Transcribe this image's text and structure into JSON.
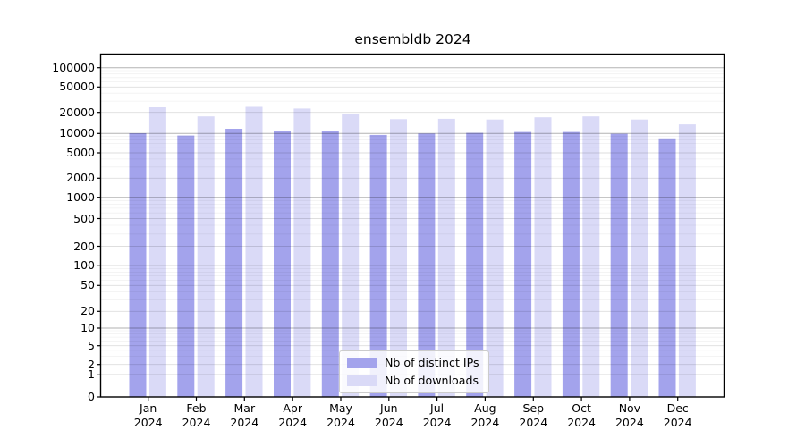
{
  "title": "ensembldb 2024",
  "chart_data": {
    "type": "bar",
    "title": "ensembldb 2024",
    "months": [
      "Jan",
      "Feb",
      "Mar",
      "Apr",
      "May",
      "Jun",
      "Jul",
      "Aug",
      "Sep",
      "Oct",
      "Nov",
      "Dec"
    ],
    "year_label": "2024",
    "categories": [
      "Jan 2024",
      "Feb 2024",
      "Mar 2024",
      "Apr 2024",
      "May 2024",
      "Jun 2024",
      "Jul 2024",
      "Aug 2024",
      "Sep 2024",
      "Oct 2024",
      "Nov 2024",
      "Dec 2024"
    ],
    "series": [
      {
        "name": "Nb of distinct IPs",
        "color": "#a3a3ec",
        "values": [
          10100,
          9300,
          11700,
          11000,
          11000,
          9500,
          10000,
          10200,
          10500,
          10500,
          9900,
          8400
        ]
      },
      {
        "name": "Nb of downloads",
        "color": "#dadaf7",
        "values": [
          24000,
          17500,
          24400,
          23000,
          19000,
          16000,
          16200,
          15800,
          17000,
          17500,
          15800,
          13500
        ]
      }
    ],
    "yscale": "symlog",
    "y_ticks": [
      0,
      1,
      2,
      5,
      10,
      20,
      50,
      100,
      200,
      500,
      1000,
      2000,
      5000,
      10000,
      20000,
      50000,
      100000
    ],
    "ylim": [
      0,
      160000
    ],
    "xlabel": "",
    "ylabel": "",
    "grid": true,
    "legend_location": "lower center"
  },
  "colors": {
    "distinct_ips_bar": "#a3a3ec",
    "downloads_bar": "#dadaf7",
    "axis": "#000000",
    "grid_major": "rgba(0,0,0,0.30)",
    "grid_submajor": "rgba(0,0,0,0.13)",
    "grid_minor": "rgba(0,0,0,0.06)",
    "legend_border": "#cccccc"
  }
}
